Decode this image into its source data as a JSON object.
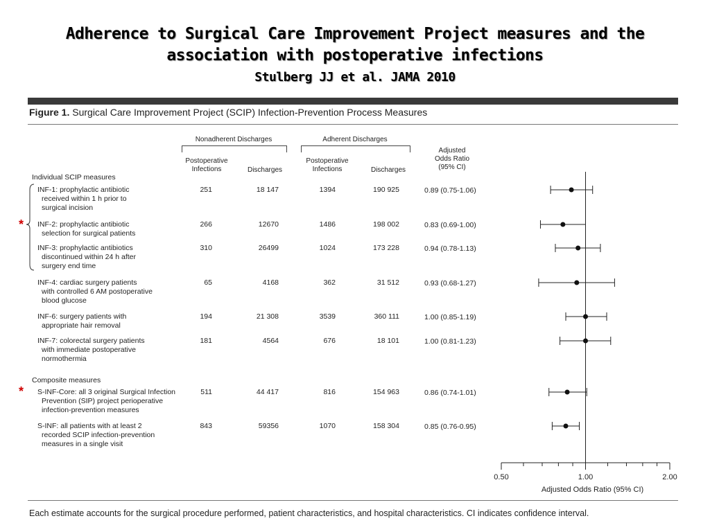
{
  "slide": {
    "title_line1": "Adherence to Surgical Care Improvement Project measures and the",
    "title_line2": "association with postoperative infections",
    "subtitle": "Stulberg JJ et al. JAMA 2010"
  },
  "figure": {
    "label": "Figure 1.",
    "title": "Surgical Care Improvement Project (SCIP) Infection-Prevention Process Measures",
    "group_nonadherent": "Nonadherent Discharges",
    "group_adherent": "Adherent Discharges",
    "col_postop_l1": "Postoperative",
    "col_postop_l2": "Infections",
    "col_discharges": "Discharges",
    "col_aor_l1": "Adjusted",
    "col_aor_l2": "Odds Ratio",
    "col_aor_l3": "(95% CI)",
    "section_individual": "Individual SCIP measures",
    "section_composite": "Composite measures",
    "footnote": "Each estimate accounts for the surgical procedure performed, patient characteristics, and hospital characteristics. CI indicates confidence interval.",
    "star_symbol": "*"
  },
  "rows": [
    {
      "label_lines": [
        "INF-1: prophylactic antibiotic",
        "received within 1 h prior to",
        "surgical incision"
      ],
      "non_inf": "251",
      "non_dis": "18 147",
      "adh_inf": "1394",
      "adh_dis": "190 925",
      "or_text": "0.89 (0.75-1.06)"
    },
    {
      "label_lines": [
        "INF-2: prophylactic antibiotic",
        "selection for surgical patients"
      ],
      "non_inf": "266",
      "non_dis": "12670",
      "adh_inf": "1486",
      "adh_dis": "198 002",
      "or_text": "0.83 (0.69-1.00)"
    },
    {
      "label_lines": [
        "INF-3: prophylactic antibiotics",
        "discontinued within 24 h after",
        "surgery end time"
      ],
      "non_inf": "310",
      "non_dis": "26499",
      "adh_inf": "1024",
      "adh_dis": "173 228",
      "or_text": "0.94 (0.78-1.13)"
    },
    {
      "label_lines": [
        "INF-4: cardiac surgery patients",
        "with controlled 6 AM postoperative",
        "blood glucose"
      ],
      "non_inf": "65",
      "non_dis": "4168",
      "adh_inf": "362",
      "adh_dis": "31 512",
      "or_text": "0.93 (0.68-1.27)"
    },
    {
      "label_lines": [
        "INF-6: surgery patients with",
        "appropriate hair removal"
      ],
      "non_inf": "194",
      "non_dis": "21 308",
      "adh_inf": "3539",
      "adh_dis": "360 111",
      "or_text": "1.00 (0.85-1.19)"
    },
    {
      "label_lines": [
        "INF-7: colorectal surgery patients",
        "with immediate postoperative",
        "normothermia"
      ],
      "non_inf": "181",
      "non_dis": "4564",
      "adh_inf": "676",
      "adh_dis": "18 101",
      "or_text": "1.00 (0.81-1.23)"
    },
    {
      "label_lines": [
        "S-INF-Core: all 3 original Surgical Infection",
        "Prevention (SIP) project perioperative",
        "infection-prevention measures"
      ],
      "non_inf": "511",
      "non_dis": "44 417",
      "adh_inf": "816",
      "adh_dis": "154 963",
      "or_text": "0.86 (0.74-1.01)"
    },
    {
      "label_lines": [
        "S-INF: all patients with at least 2",
        "recorded SCIP infection-prevention",
        "measures in a single visit"
      ],
      "non_inf": "843",
      "non_dis": "59356",
      "adh_inf": "1070",
      "adh_dis": "158 304",
      "or_text": "0.85 (0.76-0.95)"
    }
  ],
  "chart_data": {
    "type": "forest",
    "xscale": "log",
    "xlim": [
      0.5,
      2.0
    ],
    "xticks": [
      "0.50",
      "1.00",
      "2.00"
    ],
    "xlabel": "Adjusted Odds Ratio (95% CI)",
    "reference_line": 1.0,
    "categories": [
      "INF-1",
      "INF-2",
      "INF-3",
      "INF-4",
      "INF-6",
      "INF-7",
      "S-INF-Core",
      "S-INF"
    ],
    "or": [
      0.89,
      0.83,
      0.94,
      0.93,
      1.0,
      1.0,
      0.86,
      0.85
    ],
    "ci_low": [
      0.75,
      0.69,
      0.78,
      0.68,
      0.85,
      0.81,
      0.74,
      0.76
    ],
    "ci_high": [
      1.06,
      1.0,
      1.13,
      1.27,
      1.19,
      1.23,
      1.01,
      0.95
    ]
  }
}
